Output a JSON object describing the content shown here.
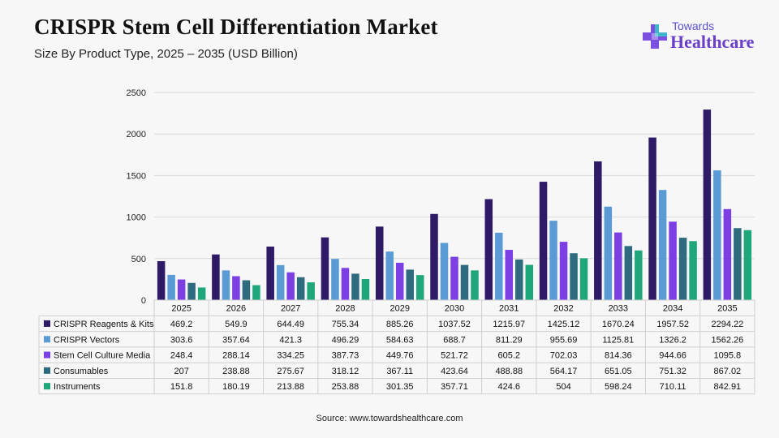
{
  "title": "CRISPR Stem Cell Differentiation Market",
  "subtitle": "Size By Product Type, 2025 – 2035 (USD Billion)",
  "logo": {
    "top": "Towards",
    "bottom": "Healthcare",
    "icon": "cross-plus-icon"
  },
  "source": "Source: www.towardshealthcare.com",
  "chart_data": {
    "type": "bar",
    "categories": [
      "2025",
      "2026",
      "2027",
      "2028",
      "2029",
      "2030",
      "2031",
      "2032",
      "2033",
      "2034",
      "2035"
    ],
    "ylim": [
      0,
      2500
    ],
    "yticks": [
      0,
      500,
      1000,
      1500,
      2000,
      2500
    ],
    "grid": true,
    "legend": "table-below",
    "series": [
      {
        "name": "CRISPR Reagents & Kits",
        "color": "#2e1a66",
        "values": [
          469.2,
          549.9,
          644.49,
          755.34,
          885.26,
          1037.52,
          1215.97,
          1425.12,
          1670.24,
          1957.52,
          2294.22
        ],
        "labels": [
          "469.2",
          "549.9",
          "644.49",
          "755.34",
          "885.26",
          "1037.52",
          "1215.97",
          "1425.12",
          "1670.24",
          "1957.52",
          "2294.22"
        ]
      },
      {
        "name": "CRISPR Vectors",
        "color": "#5b9bd5",
        "values": [
          303.6,
          357.64,
          421.3,
          496.29,
          584.63,
          688.7,
          811.29,
          955.69,
          1125.81,
          1326.2,
          1562.26
        ],
        "labels": [
          "303.6",
          "357.64",
          "421.3",
          "496.29",
          "584.63",
          "688.7",
          "811.29",
          "955.69",
          "1125.81",
          "1326.2",
          "1562.26"
        ]
      },
      {
        "name": "Stem Cell Culture Media",
        "color": "#7b3fe4",
        "values": [
          248.4,
          288.14,
          334.25,
          387.73,
          449.76,
          521.72,
          605.2,
          702.03,
          814.36,
          944.66,
          1095.8
        ],
        "labels": [
          "248.4",
          "288.14",
          "334.25",
          "387.73",
          "449.76",
          "521.72",
          "605.2",
          "702.03",
          "814.36",
          "944.66",
          "1095.8"
        ]
      },
      {
        "name": "Consumables",
        "color": "#2e6b7e",
        "values": [
          207,
          238.88,
          275.67,
          318.12,
          367.11,
          423.64,
          488.88,
          564.17,
          651.05,
          751.32,
          867.02
        ],
        "labels": [
          "207",
          "238.88",
          "275.67",
          "318.12",
          "367.11",
          "423.64",
          "488.88",
          "564.17",
          "651.05",
          "751.32",
          "867.02"
        ]
      },
      {
        "name": "Instruments",
        "color": "#1fa67a",
        "values": [
          151.8,
          180.19,
          213.88,
          253.88,
          301.35,
          357.71,
          424.6,
          504,
          598.24,
          710.11,
          842.91
        ],
        "labels": [
          "151.8",
          "180.19",
          "213.88",
          "253.88",
          "301.35",
          "357.71",
          "424.6",
          "504",
          "598.24",
          "710.11",
          "842.91"
        ]
      }
    ]
  }
}
